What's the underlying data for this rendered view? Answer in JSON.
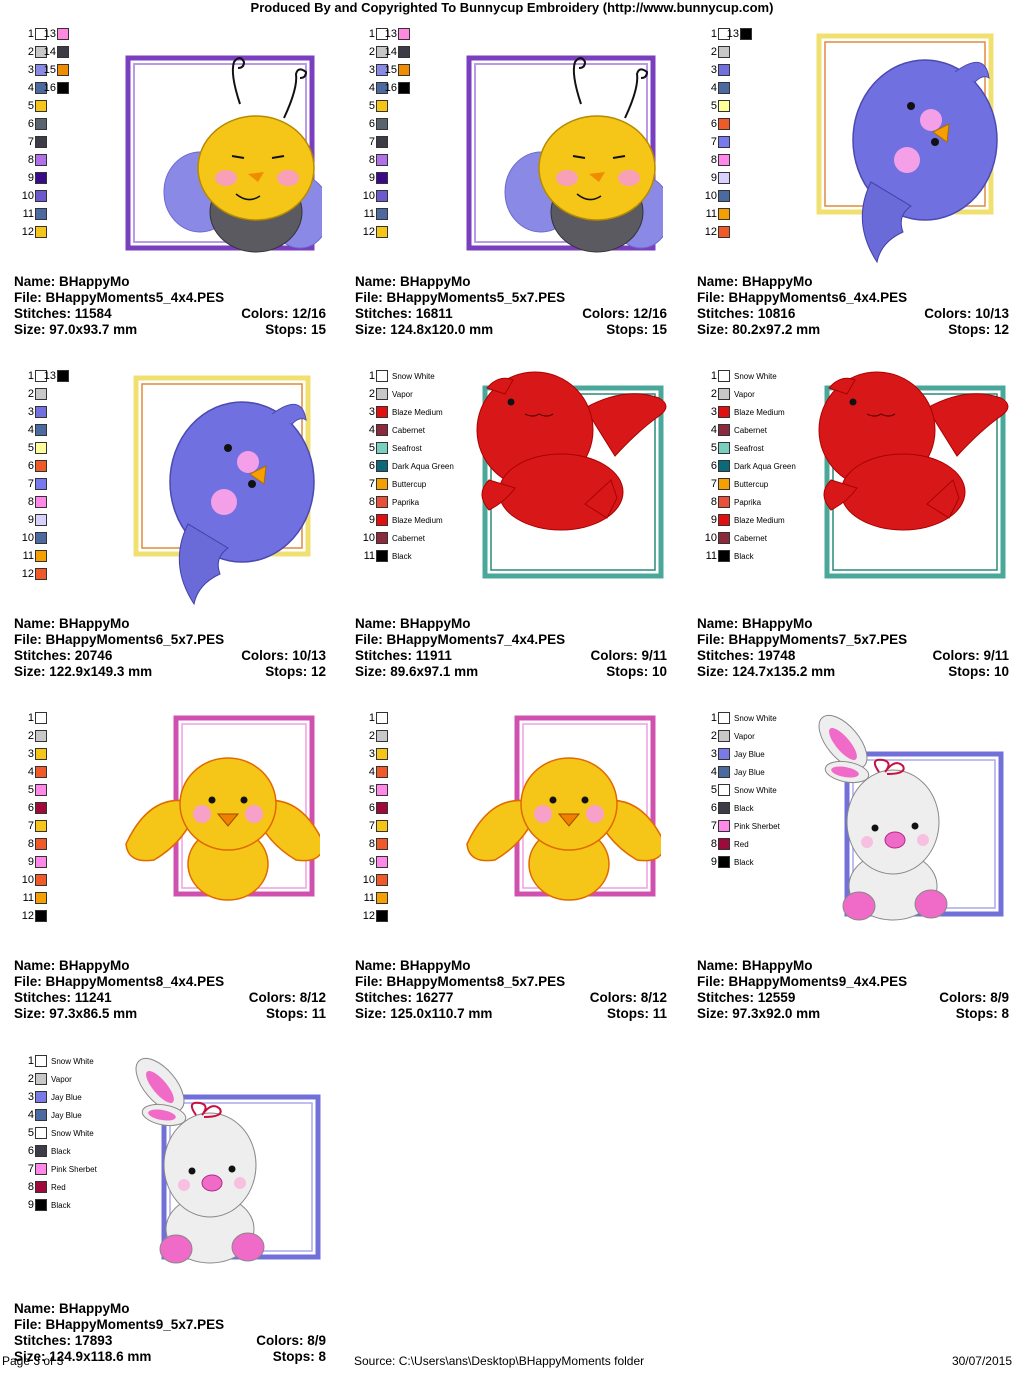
{
  "header": "Produced By and Copyrighted To Bunnycup Embroidery (http://www.bunnycup.com)",
  "footer": {
    "page": "Page 3 of 3",
    "source": "Source: C:\\Users\\ans\\Desktop\\BHappyMoments folder",
    "date": "30/07/2015"
  },
  "labels": {
    "name": "Name:",
    "file": "File:",
    "stitches": "Stitches:",
    "size": "Size:",
    "colors": "Colors:",
    "stops": "Stops:"
  },
  "designs": [
    {
      "name": "BHappyMo",
      "file": "BHappyMoments5_4x4.PES",
      "stitches": "11584",
      "colors": "12/16",
      "size": "97.0x93.7 mm",
      "stops": "15",
      "art": "bee",
      "frame": "#7a3fbf",
      "swatches": [
        {
          "n": "1",
          "c": "#ffffff"
        },
        {
          "n": "2",
          "c": "#c8c8c8"
        },
        {
          "n": "3",
          "c": "#8a8ae6"
        },
        {
          "n": "4",
          "c": "#4a6aa0"
        },
        {
          "n": "5",
          "c": "#f5c518"
        },
        {
          "n": "6",
          "c": "#5a646e"
        },
        {
          "n": "7",
          "c": "#3c3c46"
        },
        {
          "n": "8",
          "c": "#b070e8"
        },
        {
          "n": "9",
          "c": "#3a0a8a"
        },
        {
          "n": "10",
          "c": "#6a5acd"
        },
        {
          "n": "11",
          "c": "#4a6aa0"
        },
        {
          "n": "12",
          "c": "#f5c518"
        },
        {
          "n": "13",
          "c": "#ff88e0"
        },
        {
          "n": "14",
          "c": "#3c3c46"
        },
        {
          "n": "15",
          "c": "#f08c00"
        },
        {
          "n": "16",
          "c": "#000000"
        }
      ]
    },
    {
      "name": "BHappyMo",
      "file": "BHappyMoments5_5x7.PES",
      "stitches": "16811",
      "colors": "12/16",
      "size": "124.8x120.0 mm",
      "stops": "15",
      "art": "bee",
      "frame": "#7a3fbf",
      "swatches": [
        {
          "n": "1",
          "c": "#ffffff"
        },
        {
          "n": "2",
          "c": "#c8c8c8"
        },
        {
          "n": "3",
          "c": "#8a8ae6"
        },
        {
          "n": "4",
          "c": "#4a6aa0"
        },
        {
          "n": "5",
          "c": "#f5c518"
        },
        {
          "n": "6",
          "c": "#5a646e"
        },
        {
          "n": "7",
          "c": "#3c3c46"
        },
        {
          "n": "8",
          "c": "#b070e8"
        },
        {
          "n": "9",
          "c": "#3a0a8a"
        },
        {
          "n": "10",
          "c": "#6a5acd"
        },
        {
          "n": "11",
          "c": "#4a6aa0"
        },
        {
          "n": "12",
          "c": "#f5c518"
        },
        {
          "n": "13",
          "c": "#ff88e0"
        },
        {
          "n": "14",
          "c": "#3c3c46"
        },
        {
          "n": "15",
          "c": "#f08c00"
        },
        {
          "n": "16",
          "c": "#000000"
        }
      ]
    },
    {
      "name": "BHappyMo",
      "file": "BHappyMoments6_4x4.PES",
      "stitches": "10816",
      "colors": "10/13",
      "size": "80.2x97.2 mm",
      "stops": "12",
      "art": "bluebird",
      "frame": "#f0e070",
      "swatches": [
        {
          "n": "1",
          "c": "#ffffff"
        },
        {
          "n": "2",
          "c": "#c8c8c8"
        },
        {
          "n": "3",
          "c": "#7070e0"
        },
        {
          "n": "4",
          "c": "#4a6aa0"
        },
        {
          "n": "5",
          "c": "#ffff99"
        },
        {
          "n": "6",
          "c": "#f05a28"
        },
        {
          "n": "7",
          "c": "#7878f0"
        },
        {
          "n": "8",
          "c": "#ff88e8"
        },
        {
          "n": "9",
          "c": "#d8d0ff"
        },
        {
          "n": "10",
          "c": "#4a6aa0"
        },
        {
          "n": "11",
          "c": "#f5a000"
        },
        {
          "n": "12",
          "c": "#f05a28"
        },
        {
          "n": "13",
          "c": "#000000"
        }
      ]
    },
    {
      "name": "BHappyMo",
      "file": "BHappyMoments6_5x7.PES",
      "stitches": "20746",
      "colors": "10/13",
      "size": "122.9x149.3 mm",
      "stops": "12",
      "art": "bluebird",
      "frame": "#f0e070",
      "swatches": [
        {
          "n": "1",
          "c": "#ffffff"
        },
        {
          "n": "2",
          "c": "#c8c8c8"
        },
        {
          "n": "3",
          "c": "#7070e0"
        },
        {
          "n": "4",
          "c": "#4a6aa0"
        },
        {
          "n": "5",
          "c": "#ffff99"
        },
        {
          "n": "6",
          "c": "#f05a28"
        },
        {
          "n": "7",
          "c": "#7878f0"
        },
        {
          "n": "8",
          "c": "#ff88e8"
        },
        {
          "n": "9",
          "c": "#d8d0ff"
        },
        {
          "n": "10",
          "c": "#4a6aa0"
        },
        {
          "n": "11",
          "c": "#f5a000"
        },
        {
          "n": "12",
          "c": "#f05a28"
        },
        {
          "n": "13",
          "c": "#000000"
        }
      ]
    },
    {
      "name": "BHappyMo",
      "file": "BHappyMoments7_4x4.PES",
      "stitches": "11911",
      "colors": "9/11",
      "size": "89.6x97.1 mm",
      "stops": "10",
      "art": "cardinal",
      "frame": "#4aa89a",
      "swatches": [
        {
          "n": "1",
          "c": "#ffffff",
          "name": "Snow White"
        },
        {
          "n": "2",
          "c": "#c8c8c8",
          "name": "Vapor"
        },
        {
          "n": "3",
          "c": "#e01010",
          "name": "Blaze Medium"
        },
        {
          "n": "4",
          "c": "#8a2a3a",
          "name": "Cabernet"
        },
        {
          "n": "5",
          "c": "#7ad0c0",
          "name": "Seafrost"
        },
        {
          "n": "6",
          "c": "#0a6a7a",
          "name": "Dark Aqua Green"
        },
        {
          "n": "7",
          "c": "#f5a000",
          "name": "Buttercup"
        },
        {
          "n": "8",
          "c": "#e8503a",
          "name": "Paprika"
        },
        {
          "n": "9",
          "c": "#e01010",
          "name": "Blaze Medium"
        },
        {
          "n": "10",
          "c": "#8a2a3a",
          "name": "Cabernet"
        },
        {
          "n": "11",
          "c": "#000000",
          "name": "Black"
        }
      ]
    },
    {
      "name": "BHappyMo",
      "file": "BHappyMoments7_5x7.PES",
      "stitches": "19748",
      "colors": "9/11",
      "size": "124.7x135.2 mm",
      "stops": "10",
      "art": "cardinal",
      "frame": "#4aa89a",
      "swatches": [
        {
          "n": "1",
          "c": "#ffffff",
          "name": "Snow White"
        },
        {
          "n": "2",
          "c": "#c8c8c8",
          "name": "Vapor"
        },
        {
          "n": "3",
          "c": "#e01010",
          "name": "Blaze Medium"
        },
        {
          "n": "4",
          "c": "#8a2a3a",
          "name": "Cabernet"
        },
        {
          "n": "5",
          "c": "#7ad0c0",
          "name": "Seafrost"
        },
        {
          "n": "6",
          "c": "#0a6a7a",
          "name": "Dark Aqua Green"
        },
        {
          "n": "7",
          "c": "#f5a000",
          "name": "Buttercup"
        },
        {
          "n": "8",
          "c": "#e8503a",
          "name": "Paprika"
        },
        {
          "n": "9",
          "c": "#e01010",
          "name": "Blaze Medium"
        },
        {
          "n": "10",
          "c": "#8a2a3a",
          "name": "Cabernet"
        },
        {
          "n": "11",
          "c": "#000000",
          "name": "Black"
        }
      ]
    },
    {
      "name": "BHappyMo",
      "file": "BHappyMoments8_4x4.PES",
      "stitches": "11241",
      "colors": "8/12",
      "size": "97.3x86.5 mm",
      "stops": "11",
      "art": "chick",
      "frame": "#d050b0",
      "swatches": [
        {
          "n": "1",
          "c": "#ffffff"
        },
        {
          "n": "2",
          "c": "#c8c8c8"
        },
        {
          "n": "3",
          "c": "#f5c518"
        },
        {
          "n": "4",
          "c": "#f05a28"
        },
        {
          "n": "5",
          "c": "#ff88e8"
        },
        {
          "n": "6",
          "c": "#a00a3a"
        },
        {
          "n": "7",
          "c": "#f5c518"
        },
        {
          "n": "8",
          "c": "#f05a28"
        },
        {
          "n": "9",
          "c": "#ff88e8"
        },
        {
          "n": "10",
          "c": "#f05a28"
        },
        {
          "n": "11",
          "c": "#f5a000"
        },
        {
          "n": "12",
          "c": "#000000"
        }
      ]
    },
    {
      "name": "BHappyMo",
      "file": "BHappyMoments8_5x7.PES",
      "stitches": "16277",
      "colors": "8/12",
      "size": "125.0x110.7 mm",
      "stops": "11",
      "art": "chick",
      "frame": "#d050b0",
      "swatches": [
        {
          "n": "1",
          "c": "#ffffff"
        },
        {
          "n": "2",
          "c": "#c8c8c8"
        },
        {
          "n": "3",
          "c": "#f5c518"
        },
        {
          "n": "4",
          "c": "#f05a28"
        },
        {
          "n": "5",
          "c": "#ff88e8"
        },
        {
          "n": "6",
          "c": "#a00a3a"
        },
        {
          "n": "7",
          "c": "#f5c518"
        },
        {
          "n": "8",
          "c": "#f05a28"
        },
        {
          "n": "9",
          "c": "#ff88e8"
        },
        {
          "n": "10",
          "c": "#f05a28"
        },
        {
          "n": "11",
          "c": "#f5a000"
        },
        {
          "n": "12",
          "c": "#000000"
        }
      ]
    },
    {
      "name": "BHappyMo",
      "file": "BHappyMoments9_4x4.PES",
      "stitches": "12559",
      "colors": "8/9",
      "size": "97.3x92.0 mm",
      "stops": "8",
      "art": "bunny",
      "frame": "#7070d8",
      "swatches": [
        {
          "n": "1",
          "c": "#ffffff",
          "name": "Snow White"
        },
        {
          "n": "2",
          "c": "#c8c8c8",
          "name": "Vapor"
        },
        {
          "n": "3",
          "c": "#7a7ae6",
          "name": "Jay Blue"
        },
        {
          "n": "4",
          "c": "#4a6aa0",
          "name": "Jay Blue"
        },
        {
          "n": "5",
          "c": "#ffffff",
          "name": "Snow White"
        },
        {
          "n": "6",
          "c": "#3c3c46",
          "name": "Black"
        },
        {
          "n": "7",
          "c": "#ff88e8",
          "name": "Pink Sherbet"
        },
        {
          "n": "8",
          "c": "#a00a3a",
          "name": "Red"
        },
        {
          "n": "9",
          "c": "#000000",
          "name": "Black"
        }
      ]
    },
    {
      "name": "BHappyMo",
      "file": "BHappyMoments9_5x7.PES",
      "stitches": "17893",
      "colors": "8/9",
      "size": "124.9x118.6 mm",
      "stops": "8",
      "art": "bunny",
      "frame": "#7070d8",
      "swatches": [
        {
          "n": "1",
          "c": "#ffffff",
          "name": "Snow White"
        },
        {
          "n": "2",
          "c": "#c8c8c8",
          "name": "Vapor"
        },
        {
          "n": "3",
          "c": "#7a7ae6",
          "name": "Jay Blue"
        },
        {
          "n": "4",
          "c": "#4a6aa0",
          "name": "Jay Blue"
        },
        {
          "n": "5",
          "c": "#ffffff",
          "name": "Snow White"
        },
        {
          "n": "6",
          "c": "#3c3c46",
          "name": "Black"
        },
        {
          "n": "7",
          "c": "#ff88e8",
          "name": "Pink Sherbet"
        },
        {
          "n": "8",
          "c": "#a00a3a",
          "name": "Red"
        },
        {
          "n": "9",
          "c": "#000000",
          "name": "Black"
        }
      ]
    }
  ]
}
